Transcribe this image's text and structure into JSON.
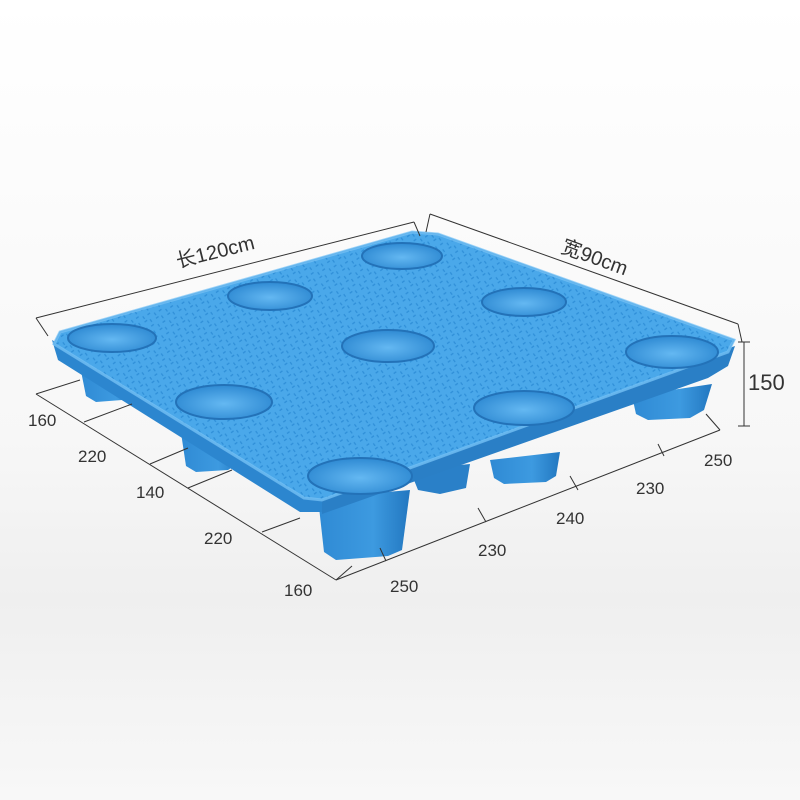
{
  "dimensions": {
    "length_label": "长120cm",
    "width_label": "宽90cm",
    "height_label": "150",
    "left_segments": [
      "160",
      "220",
      "140",
      "220",
      "160"
    ],
    "bottom_segments": [
      "250",
      "230",
      "240",
      "230",
      "250"
    ]
  },
  "colors": {
    "pallet_top": "#4aa8ea",
    "pallet_side": "#2c86cf",
    "pallet_dark": "#1d6cae",
    "pocket": "#3a96dc",
    "line": "#333333"
  }
}
